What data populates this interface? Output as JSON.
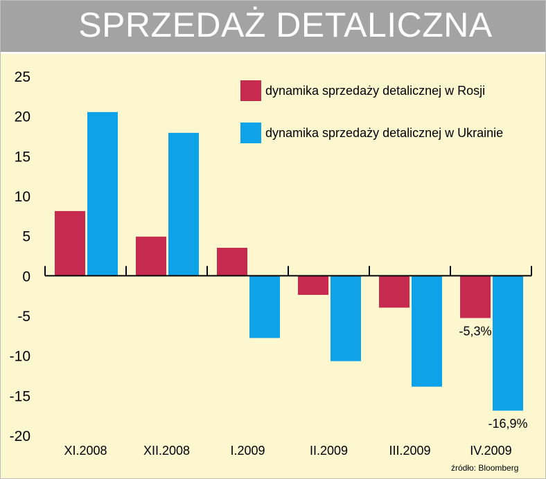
{
  "header": {
    "title": "SPRZEDAŻ DETALICZNA"
  },
  "colors": {
    "background": "#fcf7cf",
    "title_bar": "#a3a3a3",
    "russia": "#c72a4f",
    "ukraine": "#0ea3e8",
    "axis": "#000000"
  },
  "chart_data": {
    "type": "bar",
    "title": "SPRZEDAŻ DETALICZNA",
    "xlabel": "",
    "ylabel": "",
    "categories": [
      "XI.2008",
      "XII.2008",
      "I.2009",
      "II.2009",
      "III.2009",
      "IV.2009"
    ],
    "series": [
      {
        "name": "dynamika sprzedaży detalicznej w Rosji",
        "color": "#c72a4f",
        "values": [
          8.1,
          4.9,
          3.5,
          -2.4,
          -4.0,
          -5.3
        ]
      },
      {
        "name": "dynamika sprzedaży detalicznej w Ukrainie",
        "color": "#0ea3e8",
        "values": [
          20.5,
          17.9,
          -7.8,
          -10.7,
          -13.9,
          -16.9
        ]
      }
    ],
    "ylim": [
      -20,
      25
    ],
    "yticks": [
      25,
      20,
      15,
      10,
      5,
      0,
      -5,
      -10,
      -15,
      -20
    ],
    "ytick_labels": [
      "25",
      "20",
      "15",
      "10",
      "5",
      "0",
      "-5",
      "-10",
      "-15",
      "-20"
    ],
    "grid": false,
    "legend": "top-right",
    "annotations": [
      {
        "series": 0,
        "category": 5,
        "text": "-5,3%"
      },
      {
        "series": 1,
        "category": 5,
        "text": "-16,9%"
      }
    ]
  },
  "source": "źródło: Bloomberg"
}
